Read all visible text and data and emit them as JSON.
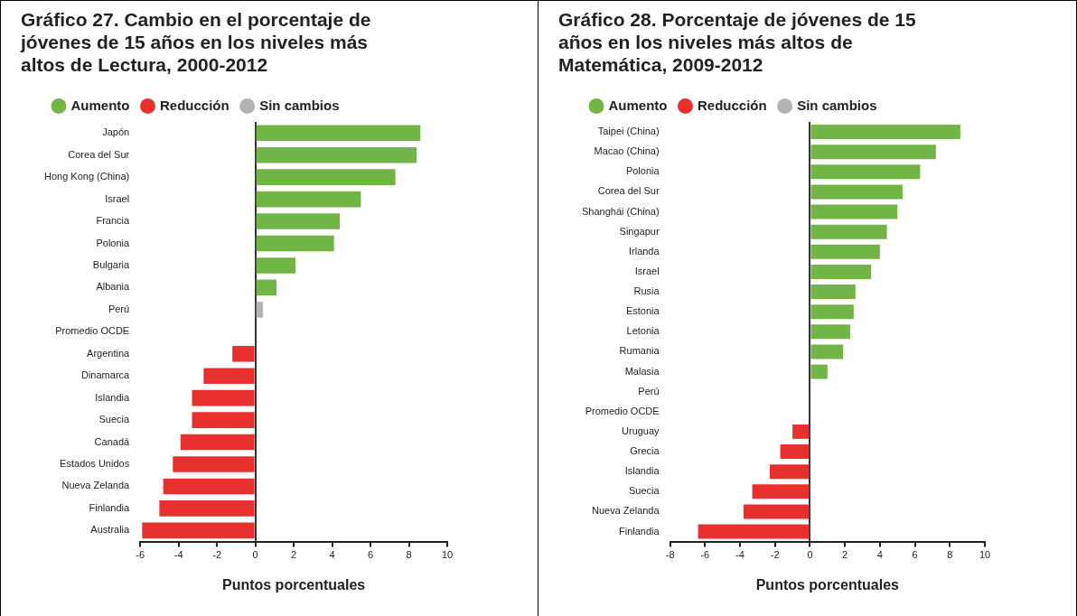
{
  "chart_data": [
    {
      "type": "bar",
      "orientation": "horizontal",
      "title": "Gráfico 27. Cambio en el porcentaje de jóvenes de 15 años en los niveles más altos de Lectura, 2000-2012",
      "xlabel": "Puntos porcentuales",
      "legend": "top left",
      "xlim": [
        -6,
        10
      ],
      "xticks": [
        -6,
        -4,
        -2,
        0,
        2,
        4,
        6,
        8,
        10
      ],
      "categories": [
        "Japón",
        "Corea del Sur",
        "Hong Kong (China)",
        "Israel",
        "Francia",
        "Polonia",
        "Bulgaria",
        "Albania",
        "Perú",
        "Promedio OCDE",
        "Argentina",
        "Dinamarca",
        "Islandia",
        "Suecia",
        "Canadá",
        "Estados Unidos",
        "Nueva Zelanda",
        "Finlandia",
        "Australia"
      ],
      "series": [
        {
          "name": "Aumento",
          "color": "#70b546",
          "values": [
            8.6,
            8.4,
            7.3,
            5.5,
            4.4,
            4.1,
            2.1,
            1.1,
            null,
            null,
            null,
            null,
            null,
            null,
            null,
            null,
            null,
            null,
            null
          ]
        },
        {
          "name": "Reducción",
          "color": "#e8312f",
          "values": [
            null,
            null,
            null,
            null,
            null,
            null,
            null,
            null,
            null,
            null,
            -1.2,
            -2.7,
            -3.3,
            -3.3,
            -3.9,
            -4.3,
            -4.8,
            -5.0,
            -5.9
          ]
        },
        {
          "name": "Sin cambios",
          "color": "#b3b3b3",
          "values": [
            null,
            null,
            null,
            null,
            null,
            null,
            null,
            null,
            0.4,
            0,
            null,
            null,
            null,
            null,
            null,
            null,
            null,
            null,
            null
          ]
        }
      ]
    },
    {
      "type": "bar",
      "orientation": "horizontal",
      "title": "Gráfico 28. Porcentaje de jóvenes de 15 años en los niveles más altos de Matemática, 2009-2012",
      "xlabel": "Puntos porcentuales",
      "legend": "top left",
      "xlim": [
        -8,
        10
      ],
      "xticks": [
        -8,
        -6,
        -4,
        -2,
        0,
        2,
        4,
        6,
        8,
        10
      ],
      "categories": [
        "Taipei (China)",
        "Macao (China)",
        "Polonia",
        "Corea del Sur",
        "Shanghái (China)",
        "Singapur",
        "Irlanda",
        "Israel",
        "Rusia",
        "Estonia",
        "Letonia",
        "Rumania",
        "Malasia",
        "Perú",
        "Promedio OCDE",
        "Uruguay",
        "Grecia",
        "Islandia",
        "Suecia",
        "Nueva Zelanda",
        "Finlandia"
      ],
      "series": [
        {
          "name": "Aumento",
          "color": "#70b546",
          "values": [
            8.6,
            7.2,
            6.3,
            5.3,
            5.0,
            4.4,
            4.0,
            3.5,
            2.6,
            2.5,
            2.3,
            1.9,
            1.0,
            null,
            null,
            null,
            null,
            null,
            null,
            null,
            null
          ]
        },
        {
          "name": "Reducción",
          "color": "#e8312f",
          "values": [
            null,
            null,
            null,
            null,
            null,
            null,
            null,
            null,
            null,
            null,
            null,
            null,
            null,
            null,
            null,
            -1.0,
            -1.7,
            -2.3,
            -3.3,
            -3.8,
            -6.4
          ]
        },
        {
          "name": "Sin cambios",
          "color": "#b3b3b3",
          "values": [
            null,
            null,
            null,
            null,
            null,
            null,
            null,
            null,
            null,
            null,
            null,
            null,
            null,
            0,
            0,
            null,
            null,
            null,
            null,
            null,
            null
          ]
        }
      ]
    }
  ]
}
